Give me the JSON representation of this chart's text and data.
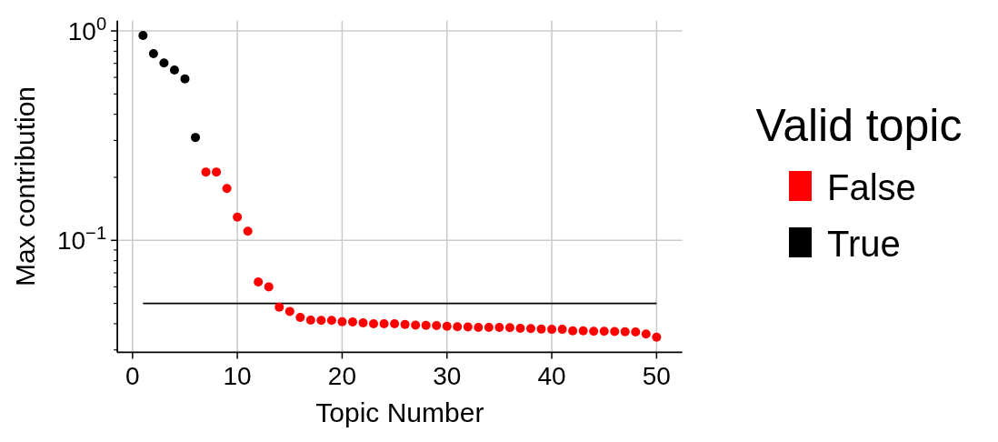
{
  "chart_data": {
    "type": "scatter",
    "xlabel": "Topic Number",
    "ylabel": "Max contribution",
    "legend_title": "Valid topic",
    "log": "y",
    "grid": true,
    "legend": "right",
    "marker": "circle",
    "xlim": [
      -1.45,
      52.45
    ],
    "ylim": [
      0.0292,
      1.12
    ],
    "xticks": [
      0,
      10,
      20,
      30,
      40,
      50
    ],
    "yticks": [
      {
        "value": 1,
        "label": "10$^{0}$"
      },
      {
        "value": 0.1,
        "label": "10$^{−1}$"
      },
      {
        "value": 0.03,
        "label": null
      },
      {
        "value": 0.04,
        "label": null
      },
      {
        "value": 0.05,
        "label": null
      },
      {
        "value": 0.06,
        "label": null
      },
      {
        "value": 0.07,
        "label": null
      },
      {
        "value": 0.08,
        "label": null
      },
      {
        "value": 0.09,
        "label": null
      },
      {
        "value": 0.2,
        "label": null
      },
      {
        "value": 0.3,
        "label": null
      },
      {
        "value": 0.4,
        "label": null
      },
      {
        "value": 0.5,
        "label": null
      },
      {
        "value": 0.6,
        "label": null
      },
      {
        "value": 0.7,
        "label": null
      },
      {
        "value": 0.8,
        "label": null
      },
      {
        "value": 0.9,
        "label": null
      }
    ],
    "series": [
      {
        "type": "line",
        "color": "#000000",
        "marker": "none",
        "x": [
          1,
          50
        ],
        "values": [
          0.05,
          0.05
        ]
      },
      {
        "name": "False",
        "color": "#ff0000",
        "x": [
          7,
          8,
          9,
          10,
          11,
          12,
          13,
          14,
          15,
          16,
          17,
          18,
          19,
          20,
          21,
          22,
          23,
          24,
          25,
          26,
          27,
          28,
          29,
          30,
          31,
          32,
          33,
          34,
          35,
          36,
          37,
          38,
          39,
          40,
          41,
          42,
          43,
          44,
          45,
          46,
          47,
          48,
          49,
          50
        ],
        "values": [
          0.212,
          0.212,
          0.177,
          0.129,
          0.1105,
          0.0633,
          0.06,
          0.048,
          0.0458,
          0.0429,
          0.0416,
          0.0415,
          0.0415,
          0.0409,
          0.0408,
          0.0404,
          0.04,
          0.04,
          0.04,
          0.0397,
          0.0394,
          0.0393,
          0.0392,
          0.0389,
          0.0387,
          0.0386,
          0.0384,
          0.0384,
          0.0384,
          0.0383,
          0.038,
          0.0379,
          0.0377,
          0.0376,
          0.0376,
          0.037,
          0.037,
          0.0368,
          0.0368,
          0.0367,
          0.0366,
          0.0365,
          0.0357,
          0.0345
        ]
      },
      {
        "name": "True",
        "color": "#000000",
        "x": [
          1,
          2,
          3,
          4,
          5,
          6
        ],
        "values": [
          0.951,
          0.779,
          0.703,
          0.651,
          0.59,
          0.31
        ]
      }
    ]
  }
}
